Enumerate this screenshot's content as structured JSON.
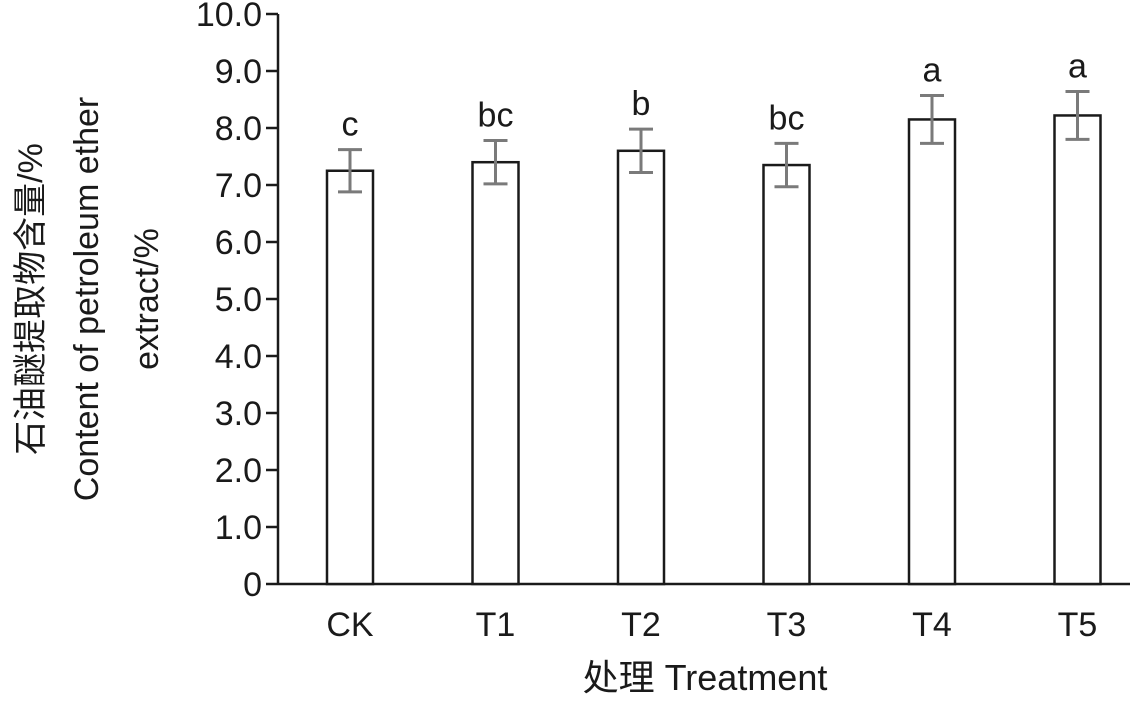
{
  "chart_data": {
    "type": "bar",
    "xlabel": "处理 Treatment",
    "ylabel_lines": [
      "石油醚提取物含量/%",
      "Content of petroleum ether",
      "extract/%"
    ],
    "categories": [
      "CK",
      "T1",
      "T2",
      "T3",
      "T4",
      "T5"
    ],
    "values": [
      7.25,
      7.4,
      7.6,
      7.35,
      8.15,
      8.22
    ],
    "errors": [
      0.37,
      0.38,
      0.38,
      0.38,
      0.42,
      0.42
    ],
    "significance": [
      "c",
      "bc",
      "b",
      "bc",
      "a",
      "a"
    ],
    "ylim": [
      0,
      10
    ],
    "yticks": [
      0,
      1,
      2,
      3,
      4,
      5,
      6,
      7,
      8,
      9,
      10
    ],
    "ytick_labels": [
      "0",
      "1.0",
      "2.0",
      "3.0",
      "4.0",
      "5.0",
      "6.0",
      "7.0",
      "8.0",
      "9.0",
      "10.0"
    ],
    "grid": false,
    "bar_fill": "#ffffff",
    "bar_stroke": "#1a1a1a",
    "error_bar_color": "#7a7a7a"
  }
}
